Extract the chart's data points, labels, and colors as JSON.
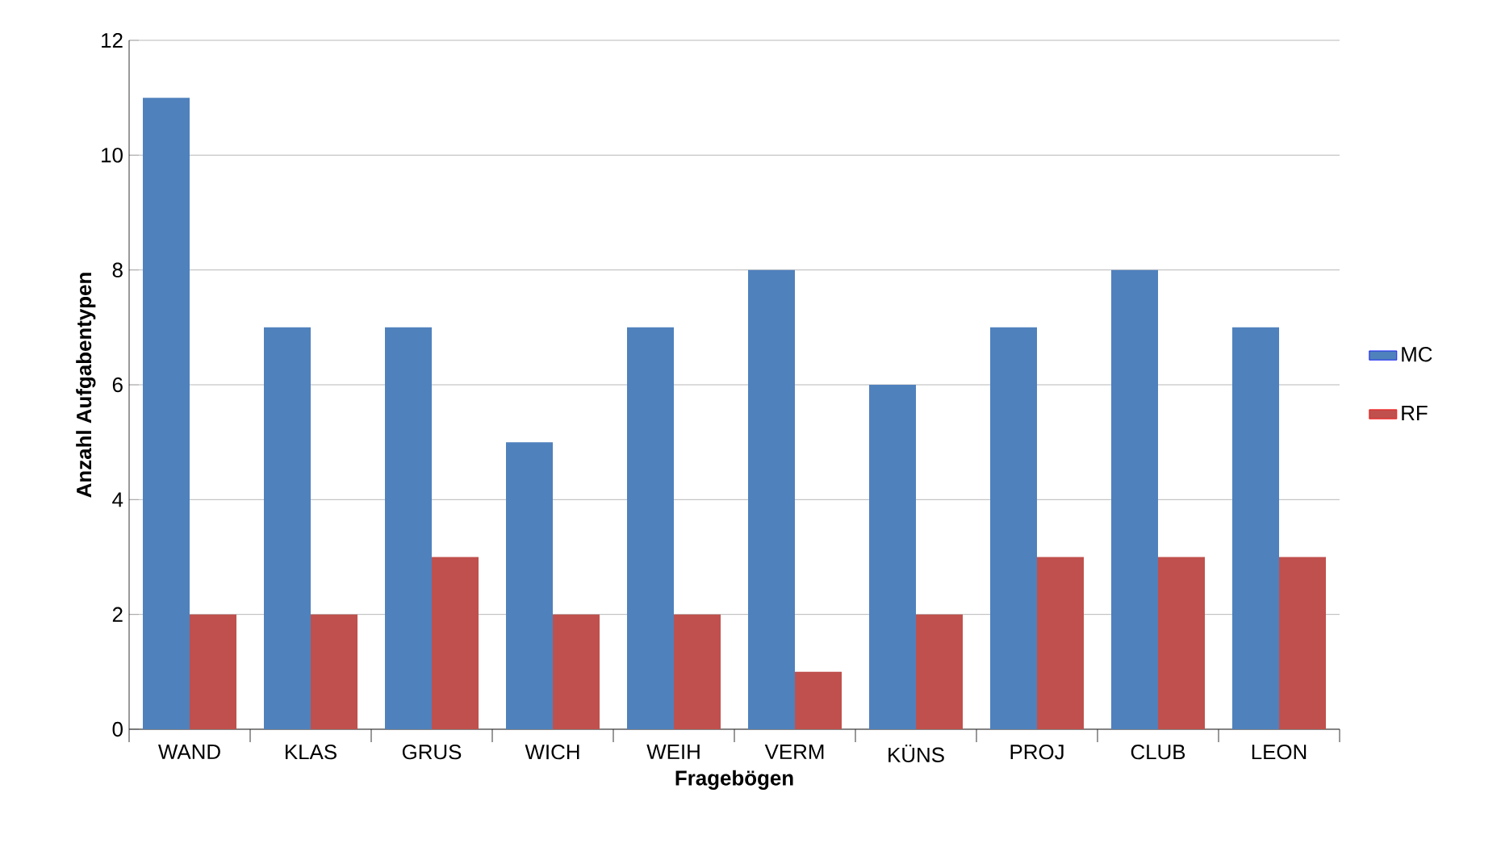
{
  "chart_data": {
    "type": "bar",
    "xlabel": "Fragebögen",
    "ylabel": "Anzahl Aufgabentypen",
    "categories": [
      "WAND",
      "KLAS",
      "GRUS",
      "WICH",
      "WEIH",
      "VERM",
      "KÜNS",
      "PROJ",
      "CLUB",
      "LEON"
    ],
    "series": [
      {
        "name": "MC",
        "color": "#4f81bd",
        "values": [
          11,
          7,
          7,
          5,
          7,
          8,
          6,
          7,
          8,
          7
        ]
      },
      {
        "name": "RF",
        "color": "#c0504d",
        "values": [
          2,
          2,
          3,
          2,
          2,
          1,
          2,
          3,
          3,
          3
        ]
      }
    ],
    "ylim": [
      0,
      12
    ],
    "yticks": [
      0,
      2,
      4,
      6,
      8,
      10,
      12
    ],
    "grid": "y",
    "legend": "right"
  }
}
